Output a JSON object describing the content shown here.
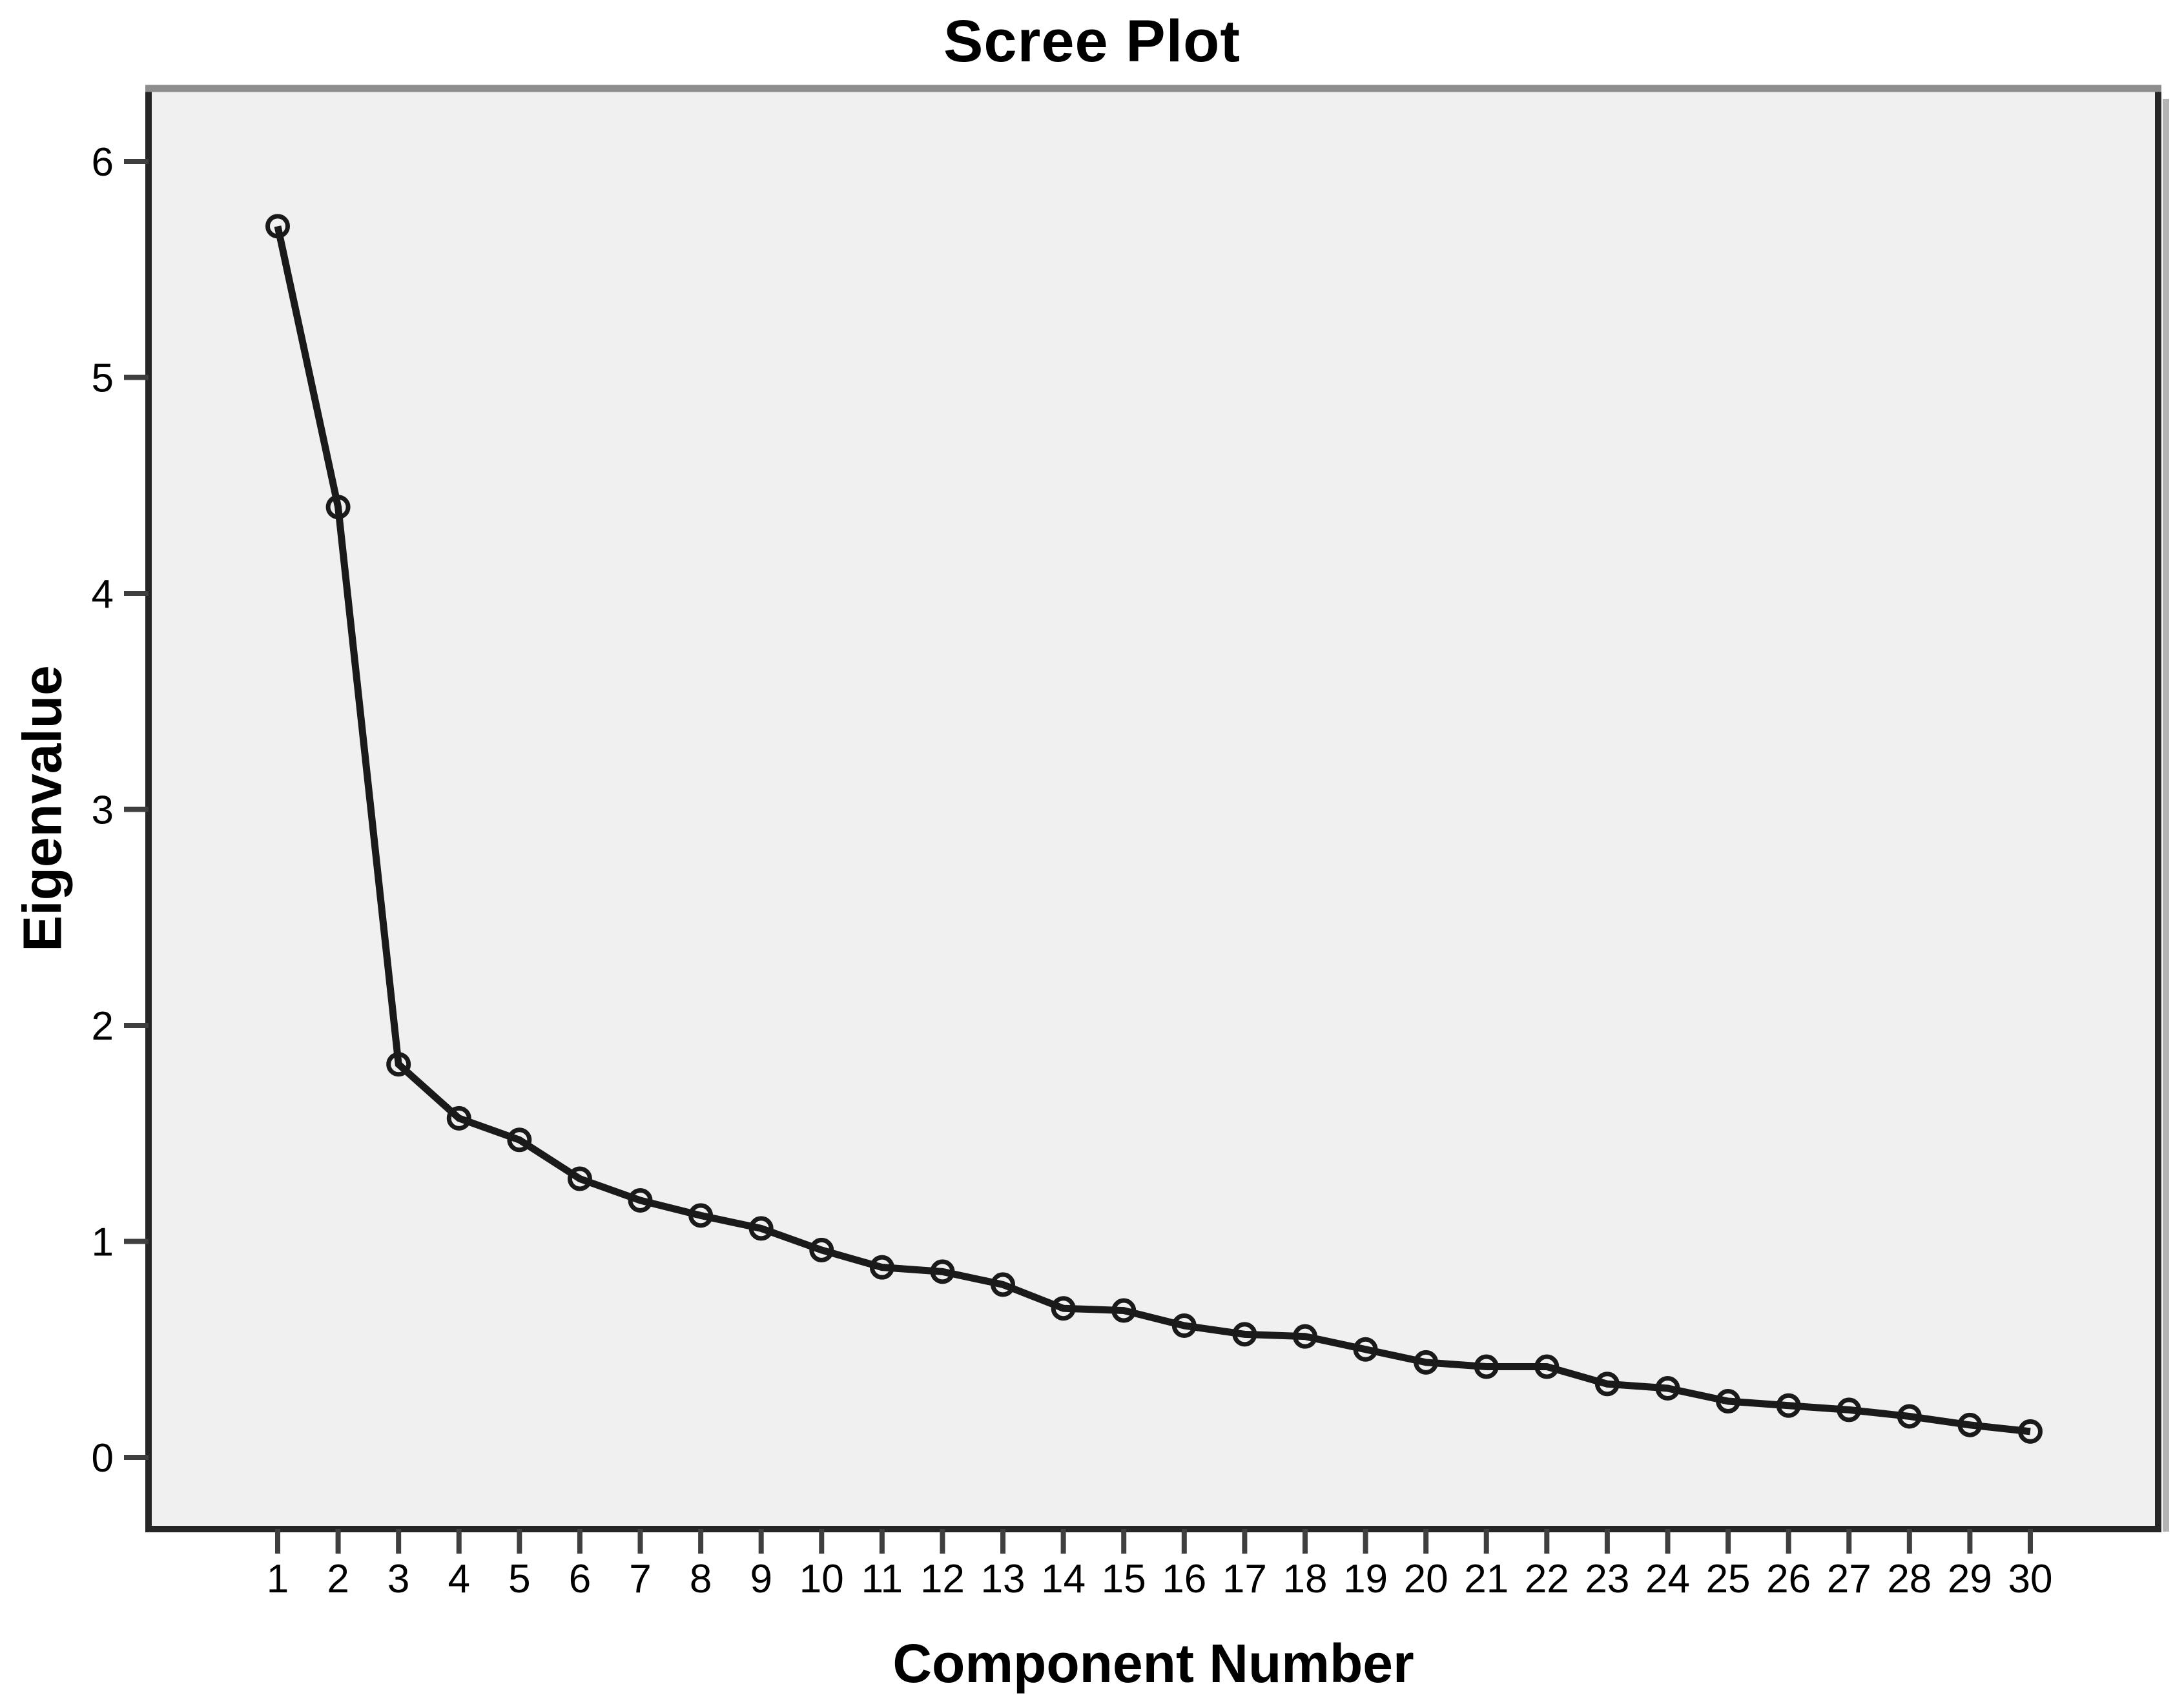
{
  "chart_data": {
    "type": "line",
    "title": "Scree Plot",
    "xlabel": "Component Number",
    "ylabel": "Eigenvalue",
    "series_name": "Eigenvalue",
    "x": [
      1,
      2,
      3,
      4,
      5,
      6,
      7,
      8,
      9,
      10,
      11,
      12,
      13,
      14,
      15,
      16,
      17,
      18,
      19,
      20,
      21,
      22,
      23,
      24,
      25,
      26,
      27,
      28,
      29,
      30
    ],
    "values": [
      5.7,
      4.4,
      1.82,
      1.57,
      1.47,
      1.29,
      1.19,
      1.12,
      1.06,
      0.96,
      0.88,
      0.86,
      0.8,
      0.69,
      0.68,
      0.61,
      0.57,
      0.56,
      0.5,
      0.44,
      0.42,
      0.42,
      0.34,
      0.32,
      0.26,
      0.24,
      0.22,
      0.19,
      0.15,
      0.12
    ],
    "y_ticks": [
      0,
      1,
      2,
      3,
      4,
      5,
      6
    ],
    "ylim": [
      -0.33,
      6.34
    ],
    "grid": false,
    "legend": false,
    "marker": "open-circle",
    "colors": {
      "line": "#1a1a1a",
      "marker_stroke": "#1a1a1a",
      "plot_background": "#f0f0f0",
      "frame": "#262626",
      "frame_top": "#8e8e8e",
      "shadow": "#b3b3b3",
      "tick": "#3f3f3f",
      "text": "#000000",
      "page_background": "#ffffff"
    }
  }
}
